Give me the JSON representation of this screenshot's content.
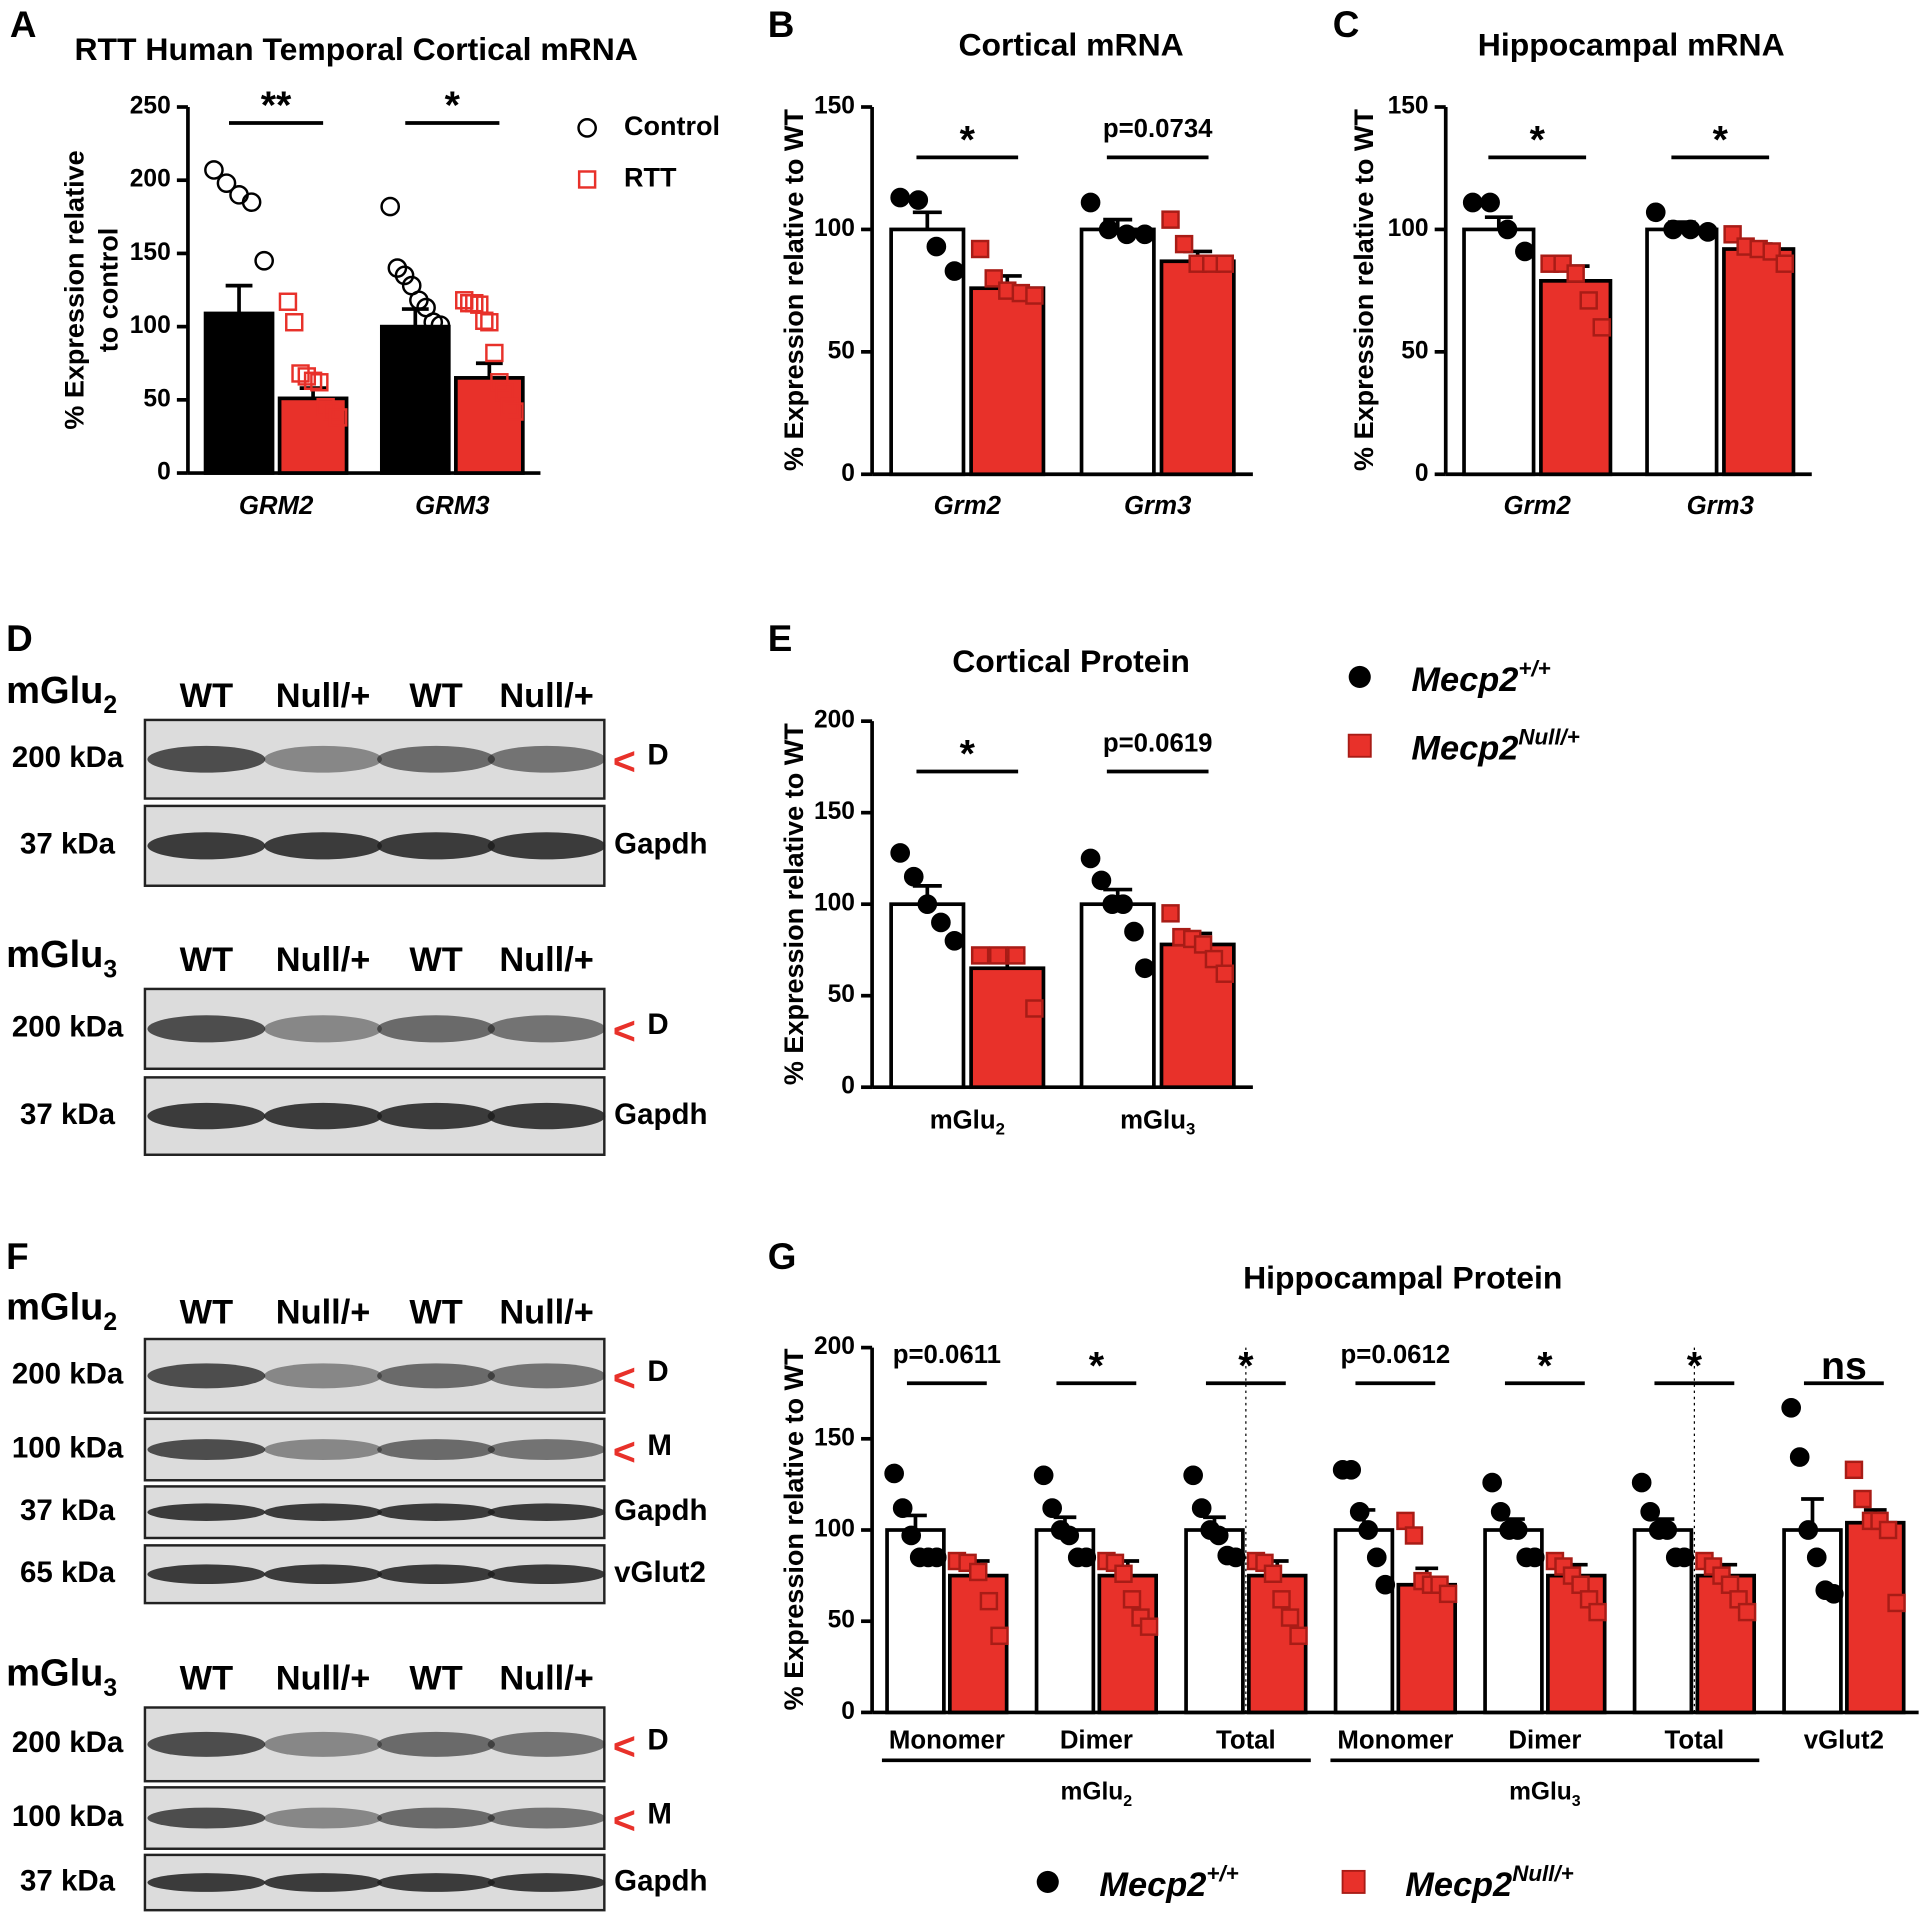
{
  "chart_data": [
    {
      "type": "bar",
      "label": "A",
      "title": "RTT Human Temporal Cortical mRNA",
      "ylabel": [
        "% Expression relative",
        "to control"
      ],
      "categories": [
        "GRM2",
        "GRM3"
      ],
      "category_italic": true,
      "ylim": [
        0,
        250
      ],
      "yticks": [
        0,
        50,
        100,
        150,
        200,
        250
      ],
      "series": [
        {
          "name": "Control",
          "color": "#000000",
          "marker": "circle",
          "marker_fill": "none",
          "marker_stroke": "#000000",
          "values": [
            109,
            100
          ],
          "errors": [
            19,
            12
          ],
          "points": [
            [
              207,
              198,
              190,
              185,
              145
            ],
            [
              182,
              140,
              135,
              128,
              118,
              113,
              103,
              101
            ]
          ]
        },
        {
          "name": "RTT",
          "color": "#e8312a",
          "marker": "square",
          "marker_fill": "none",
          "marker_stroke": "#e8312a",
          "values": [
            51,
            65
          ],
          "errors": [
            7,
            10
          ],
          "points": [
            [
              117,
              103,
              68,
              66,
              63,
              62,
              45,
              42,
              38
            ],
            [
              118,
              116,
              116,
              115,
              104,
              103,
              82,
              62,
              55,
              45,
              42
            ]
          ]
        }
      ],
      "significance": [
        "**",
        "*"
      ],
      "legend": true
    },
    {
      "type": "bar",
      "label": "B",
      "title": "Cortical mRNA",
      "ylabel": [
        "% Expression relative to WT"
      ],
      "categories": [
        "Grm2",
        "Grm3"
      ],
      "category_italic": true,
      "ylim": [
        0,
        150
      ],
      "yticks": [
        0,
        50,
        100,
        150
      ],
      "series": [
        {
          "color": "#ffffff",
          "marker": "circle",
          "marker_fill": "#000000",
          "marker_stroke": "#000000",
          "values": [
            100,
            100
          ],
          "errors": [
            7,
            4
          ],
          "points": [
            [
              113,
              112,
              93,
              83
            ],
            [
              111,
              100,
              98,
              98
            ]
          ]
        },
        {
          "color": "#e8312a",
          "marker": "square",
          "marker_fill": "#e8312a",
          "marker_stroke": "#a81c16",
          "values": [
            76,
            87
          ],
          "errors": [
            5,
            4
          ],
          "points": [
            [
              92,
              80,
              75,
              74,
              73
            ],
            [
              104,
              94,
              86,
              86,
              86
            ]
          ]
        }
      ],
      "significance": [
        "*",
        "p=0.0734"
      ],
      "legend": false
    },
    {
      "type": "bar",
      "label": "C",
      "title": "Hippocampal mRNA",
      "ylabel": [
        "% Expression relative to WT"
      ],
      "categories": [
        "Grm2",
        "Grm3"
      ],
      "category_italic": true,
      "ylim": [
        0,
        150
      ],
      "yticks": [
        0,
        50,
        100,
        150
      ],
      "series": [
        {
          "color": "#ffffff",
          "marker": "circle",
          "marker_fill": "#000000",
          "marker_stroke": "#000000",
          "values": [
            100,
            100
          ],
          "errors": [
            5,
            3
          ],
          "points": [
            [
              111,
              111,
              100,
              91
            ],
            [
              107,
              100,
              100,
              99
            ]
          ]
        },
        {
          "color": "#e8312a",
          "marker": "square",
          "marker_fill": "#e8312a",
          "marker_stroke": "#a81c16",
          "values": [
            79,
            92
          ],
          "errors": [
            6,
            2
          ],
          "points": [
            [
              86,
              86,
              82,
              71,
              60
            ],
            [
              98,
              93,
              92,
              91,
              86
            ]
          ]
        }
      ],
      "significance": [
        "*",
        "*"
      ],
      "legend": false
    },
    {
      "type": "bar",
      "label": "E",
      "title": "Cortical Protein",
      "ylabel": [
        "% Expression relative to WT"
      ],
      "categories": [
        {
          "base": "mGlu",
          "sub": "2"
        },
        {
          "base": "mGlu",
          "sub": "3"
        }
      ],
      "category_italic": false,
      "ylim": [
        0,
        200
      ],
      "yticks": [
        0,
        50,
        100,
        150,
        200
      ],
      "series": [
        {
          "color": "#ffffff",
          "marker": "circle",
          "marker_fill": "#000000",
          "marker_stroke": "#000000",
          "values": [
            100,
            100
          ],
          "errors": [
            10,
            8
          ],
          "points": [
            [
              128,
              115,
              100,
              90,
              80
            ],
            [
              125,
              113,
              100,
              100,
              85,
              65
            ]
          ]
        },
        {
          "color": "#e8312a",
          "marker": "square",
          "marker_fill": "#e8312a",
          "marker_stroke": "#a81c16",
          "values": [
            65,
            78
          ],
          "errors": [
            6,
            6
          ],
          "points": [
            [
              72,
              72,
              72,
              43
            ],
            [
              95,
              82,
              81,
              78,
              70,
              62
            ]
          ]
        }
      ],
      "significance": [
        "*",
        "p=0.0619"
      ],
      "legend": false
    },
    {
      "type": "bar",
      "label": "G",
      "title": "Hippocampal Protein",
      "ylabel": [
        "% Expression relative to WT"
      ],
      "categories": [
        "Monomer",
        "Dimer",
        "Total",
        "Monomer",
        "Dimer",
        "Total",
        "vGlut2"
      ],
      "category_italic": false,
      "group_labels": [
        {
          "base": "mGlu",
          "sub": "2"
        },
        {
          "base": "mGlu",
          "sub": "3"
        }
      ],
      "ylim": [
        0,
        200
      ],
      "yticks": [
        0,
        50,
        100,
        150,
        200
      ],
      "series": [
        {
          "color": "#ffffff",
          "marker": "circle",
          "marker_fill": "#000000",
          "marker_stroke": "#000000",
          "values": [
            100,
            100,
            100,
            100,
            100,
            100,
            100
          ],
          "errors": [
            8,
            7,
            7,
            11,
            6,
            6,
            17
          ],
          "points": [
            [
              131,
              112,
              97,
              85,
              85,
              85
            ],
            [
              130,
              112,
              100,
              97,
              85,
              85
            ],
            [
              130,
              112,
              100,
              97,
              86,
              85
            ],
            [
              133,
              133,
              110,
              100,
              85,
              70
            ],
            [
              126,
              110,
              100,
              100,
              85,
              85
            ],
            [
              126,
              110,
              100,
              100,
              85,
              85
            ],
            [
              167,
              140,
              100,
              85,
              67,
              65
            ]
          ]
        },
        {
          "color": "#e8312a",
          "marker": "square",
          "marker_fill": "#e8312a",
          "marker_stroke": "#a81c16",
          "values": [
            75,
            75,
            75,
            70,
            75,
            75,
            104
          ],
          "errors": [
            8,
            8,
            8,
            9,
            6,
            6,
            7
          ],
          "points": [
            [
              83,
              82,
              77,
              61,
              42
            ],
            [
              83,
              82,
              76,
              62,
              52,
              47
            ],
            [
              83,
              82,
              76,
              62,
              52,
              42
            ],
            [
              105,
              97,
              72,
              70,
              70,
              65
            ],
            [
              83,
              80,
              75,
              70,
              62,
              55
            ],
            [
              83,
              80,
              75,
              70,
              62,
              55
            ],
            [
              133,
              117,
              105,
              105,
              100,
              60
            ]
          ]
        }
      ],
      "significance": [
        "p=0.0611",
        "*",
        "*",
        "p=0.0612",
        "*",
        "*",
        "ns"
      ],
      "legend": false
    }
  ],
  "legend": [
    {
      "label": "Mecp2",
      "sup": "+/+",
      "marker": "circle",
      "color": "#000000"
    },
    {
      "label": "Mecp2",
      "sup": "Null/+",
      "marker": "square",
      "color": "#e8312a"
    }
  ],
  "blots": [
    {
      "label": "D",
      "groups": [
        {
          "heading": {
            "base": "mGlu",
            "sub": "2"
          },
          "lanes": [
            "WT",
            "Null/+",
            "WT",
            "Null/+"
          ],
          "rows": [
            {
              "size": "200 kDa",
              "arrow": "<",
              "band": "D"
            },
            {
              "size": "37 kDa",
              "band": "Gapdh"
            }
          ]
        },
        {
          "heading": {
            "base": "mGlu",
            "sub": "3"
          },
          "lanes": [
            "WT",
            "Null/+",
            "WT",
            "Null/+"
          ],
          "rows": [
            {
              "size": "200 kDa",
              "arrow": "<",
              "band": "D"
            },
            {
              "size": "37 kDa",
              "band": "Gapdh"
            }
          ]
        }
      ]
    },
    {
      "label": "F",
      "groups": [
        {
          "heading": {
            "base": "mGlu",
            "sub": "2"
          },
          "lanes": [
            "WT",
            "Null/+",
            "WT",
            "Null/+"
          ],
          "rows": [
            {
              "size": "200 kDa",
              "arrow": "<",
              "band": "D"
            },
            {
              "size": "100 kDa",
              "arrow": "<",
              "band": "M"
            },
            {
              "size": "37 kDa",
              "band": "Gapdh"
            },
            {
              "size": "65 kDa",
              "band": "vGlut2"
            }
          ]
        },
        {
          "heading": {
            "base": "mGlu",
            "sub": "3"
          },
          "lanes": [
            "WT",
            "Null/+",
            "WT",
            "Null/+"
          ],
          "rows": [
            {
              "size": "200 kDa",
              "arrow": "<",
              "band": "D"
            },
            {
              "size": "100 kDa",
              "arrow": "<",
              "band": "M"
            },
            {
              "size": "37 kDa",
              "band": "Gapdh"
            }
          ]
        }
      ]
    }
  ]
}
